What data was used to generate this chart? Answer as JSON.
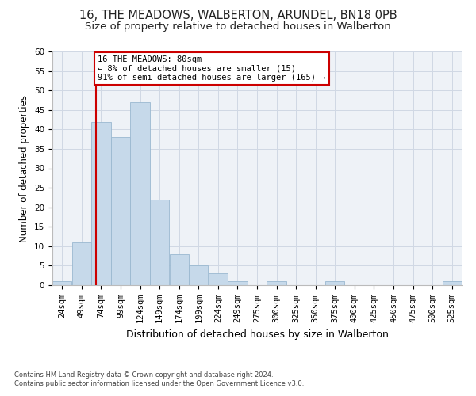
{
  "title": "16, THE MEADOWS, WALBERTON, ARUNDEL, BN18 0PB",
  "subtitle": "Size of property relative to detached houses in Walberton",
  "xlabel": "Distribution of detached houses by size in Walberton",
  "ylabel": "Number of detached properties",
  "categories": [
    "24sqm",
    "49sqm",
    "74sqm",
    "99sqm",
    "124sqm",
    "149sqm",
    "174sqm",
    "199sqm",
    "224sqm",
    "249sqm",
    "275sqm",
    "300sqm",
    "325sqm",
    "350sqm",
    "375sqm",
    "400sqm",
    "425sqm",
    "450sqm",
    "475sqm",
    "500sqm",
    "525sqm"
  ],
  "values": [
    1,
    11,
    42,
    38,
    47,
    22,
    8,
    5,
    3,
    1,
    0,
    1,
    0,
    0,
    1,
    0,
    0,
    0,
    0,
    0,
    1
  ],
  "bar_color": "#c6d9ea",
  "bar_edge_color": "#9ab8d0",
  "red_line_x": 80,
  "ylim": [
    0,
    60
  ],
  "yticks": [
    0,
    5,
    10,
    15,
    20,
    25,
    30,
    35,
    40,
    45,
    50,
    55,
    60
  ],
  "annotation_line1": "16 THE MEADOWS: 80sqm",
  "annotation_line2": "← 8% of detached houses are smaller (15)",
  "annotation_line3": "91% of semi-detached houses are larger (165) →",
  "annotation_box_color": "#ffffff",
  "annotation_box_edge": "#cc0000",
  "grid_color": "#d0d8e4",
  "bg_color": "#eef2f7",
  "footer1": "Contains HM Land Registry data © Crown copyright and database right 2024.",
  "footer2": "Contains public sector information licensed under the Open Government Licence v3.0.",
  "title_fontsize": 10.5,
  "subtitle_fontsize": 9.5,
  "tick_fontsize": 7.5,
  "ylabel_fontsize": 8.5,
  "xlabel_fontsize": 9,
  "annotation_fontsize": 7.5,
  "footer_fontsize": 6
}
